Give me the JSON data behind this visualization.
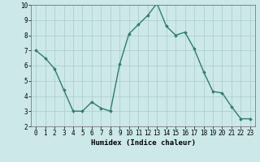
{
  "x": [
    0,
    1,
    2,
    3,
    4,
    5,
    6,
    7,
    8,
    9,
    10,
    11,
    12,
    13,
    14,
    15,
    16,
    17,
    18,
    19,
    20,
    21,
    22,
    23
  ],
  "y": [
    7.0,
    6.5,
    5.8,
    4.4,
    3.0,
    3.0,
    3.6,
    3.2,
    3.0,
    6.1,
    8.1,
    8.7,
    9.3,
    10.1,
    8.6,
    8.0,
    8.2,
    7.1,
    5.6,
    4.3,
    4.2,
    3.3,
    2.5,
    2.5
  ],
  "line_color": "#2e7d6e",
  "marker": "D",
  "marker_size": 1.8,
  "line_width": 1.0,
  "xlabel": "Humidex (Indice chaleur)",
  "xlim": [
    -0.5,
    23.5
  ],
  "ylim": [
    2,
    10
  ],
  "yticks": [
    2,
    3,
    4,
    5,
    6,
    7,
    8,
    9,
    10
  ],
  "xticks": [
    0,
    1,
    2,
    3,
    4,
    5,
    6,
    7,
    8,
    9,
    10,
    11,
    12,
    13,
    14,
    15,
    16,
    17,
    18,
    19,
    20,
    21,
    22,
    23
  ],
  "bg_color": "#cce8e8",
  "grid_color": "#aacccc",
  "tick_label_fontsize": 5.5,
  "xlabel_fontsize": 6.5,
  "xlabel_font": "monospace"
}
